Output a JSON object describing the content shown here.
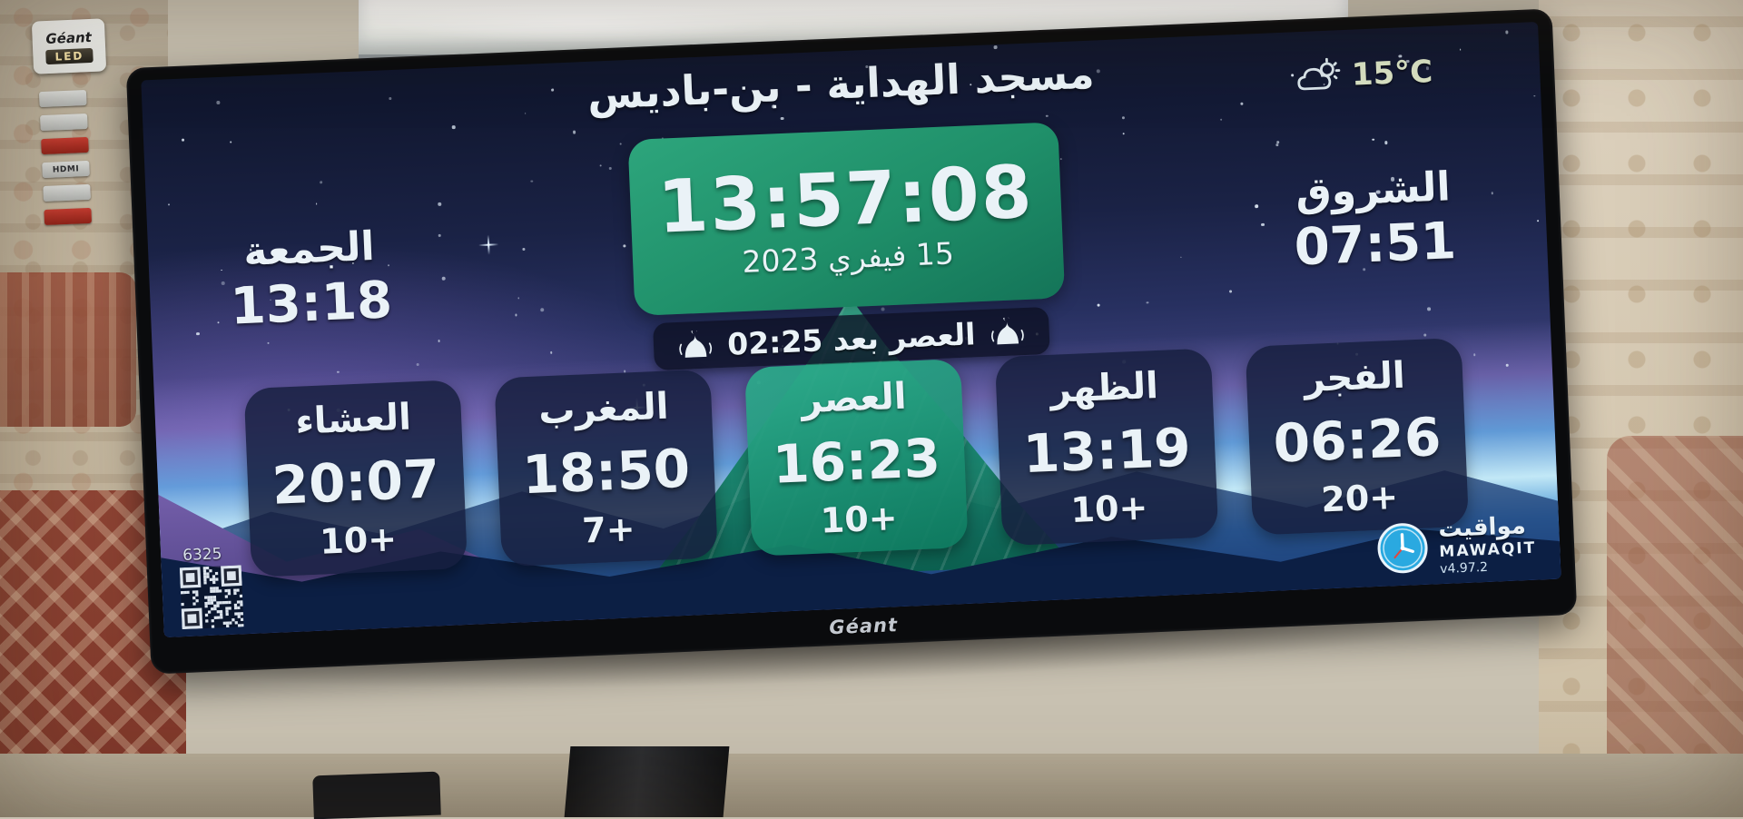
{
  "tv": {
    "brand_sticker": "Géant",
    "sticker_led": "LED",
    "sticker_hdmi": "HDMI",
    "bottom_brand": "Géant"
  },
  "screen": {
    "header": {
      "mosque_name": "مسجد الهداية - بن-باديس",
      "temperature": "15°C",
      "weather_icon": "sun-behind-cloud"
    },
    "clock": {
      "time": "13:57:08",
      "date": "15 فيفري 2023"
    },
    "next_prayer_banner": {
      "text": "العصر بعد 02:25",
      "icon": "mosque-dome"
    },
    "jumua": {
      "label": "الجمعة",
      "time": "13:18"
    },
    "shuruq": {
      "label": "الشروق",
      "time": "07:51"
    },
    "prayers": [
      {
        "name": "الفجر",
        "time": "06:26",
        "offset": "20+",
        "active": false
      },
      {
        "name": "الظهر",
        "time": "13:19",
        "offset": "10+",
        "active": false
      },
      {
        "name": "العصر",
        "time": "16:23",
        "offset": "10+",
        "active": true
      },
      {
        "name": "المغرب",
        "time": "18:50",
        "offset": "7+",
        "active": false
      },
      {
        "name": "العشاء",
        "time": "20:07",
        "offset": "10+",
        "active": false
      }
    ],
    "footer": {
      "screen_code": "6325",
      "qr_icon": "qr-code",
      "logo_icon": "mawaqit-clock",
      "app_name_ar": "مواقيت",
      "app_name_en": "MAWAQIT",
      "version": "v4.97.2"
    }
  },
  "colors": {
    "accent_green": "#1f9e74",
    "card_bg": "#161e3e",
    "text": "#eaf2f7",
    "temp_text": "#d9e2c4",
    "mawaqit_blue": "#2aa9e0"
  }
}
